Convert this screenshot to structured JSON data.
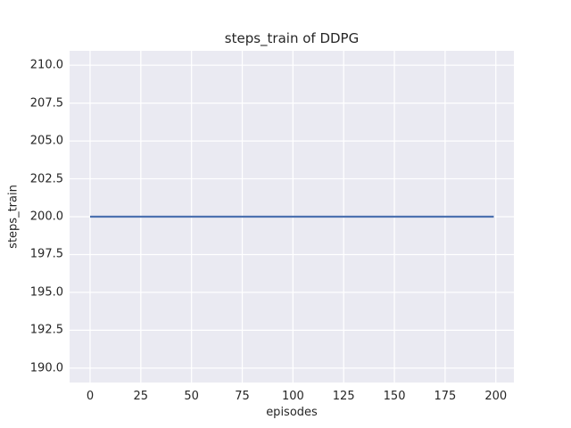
{
  "chart_data": {
    "type": "line",
    "title": "steps_train of DDPG",
    "xlabel": "episodes",
    "ylabel": "steps_train",
    "xlim": [
      -10.1,
      208.9
    ],
    "ylim": [
      189.05,
      210.95
    ],
    "grid": true,
    "legend": "none",
    "xticks": {
      "values": [
        0,
        25,
        50,
        75,
        100,
        125,
        150,
        175,
        200
      ],
      "labels": [
        "0",
        "25",
        "50",
        "75",
        "100",
        "125",
        "150",
        "175",
        "200"
      ]
    },
    "yticks": {
      "values": [
        190,
        192.5,
        195,
        197.5,
        200,
        202.5,
        205,
        207.5,
        210
      ],
      "labels": [
        "190.0",
        "192.5",
        "195.0",
        "197.5",
        "200.0",
        "202.5",
        "205.0",
        "207.5",
        "210.0"
      ]
    },
    "series": [
      {
        "name": "steps_train",
        "color": "#4c72b0",
        "constant_y": 200,
        "x_start": 0,
        "x_end": 199,
        "points": [
          [
            0,
            200
          ],
          [
            199,
            200
          ]
        ]
      }
    ],
    "style": {
      "figure_background": "#ffffff",
      "axes_background": "#eaeaf2",
      "grid_color": "#ffffff",
      "text_color": "#262626",
      "line_width": 2.2
    }
  }
}
